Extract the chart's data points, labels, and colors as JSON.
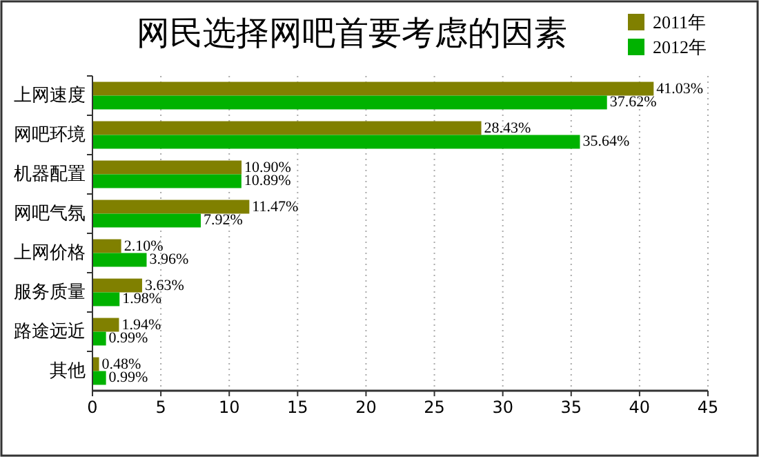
{
  "chart_data": {
    "type": "bar",
    "orientation": "horizontal",
    "title": "网民选择网吧首要考虑的因素",
    "categories": [
      "上网速度",
      "网吧环境",
      "机器配置",
      "网吧气氛",
      "上网价格",
      "服务质量",
      "路途远近",
      "其他"
    ],
    "series": [
      {
        "name": "2011年",
        "color": "#808000",
        "values": [
          41.03,
          28.43,
          10.9,
          11.47,
          2.1,
          3.63,
          1.94,
          0.48
        ],
        "value_labels": [
          "41.03%",
          "28.43%",
          "10.90%",
          "11.47%",
          "2.10%",
          "3.63%",
          "1.94%",
          "0.48%"
        ]
      },
      {
        "name": "2012年",
        "color": "#00b200",
        "values": [
          37.62,
          35.64,
          10.89,
          7.92,
          3.96,
          1.98,
          0.99,
          0.99
        ],
        "value_labels": [
          "37.62%",
          "35.64%",
          "10.89%",
          "7.92%",
          "3.96%",
          "1.98%",
          "0.99%",
          "0.99%"
        ]
      }
    ],
    "xlim": [
      0,
      45
    ],
    "xticks": [
      0,
      5,
      10,
      15,
      20,
      25,
      30,
      35,
      40,
      45
    ],
    "grid": "x",
    "legend": "top right"
  }
}
